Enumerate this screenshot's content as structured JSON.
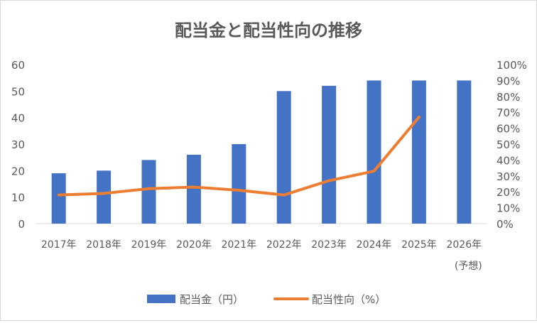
{
  "chart_data": {
    "type": "bar",
    "title": "配当金と配当性向の推移",
    "categories": [
      "2017年",
      "2018年",
      "2019年",
      "2020年",
      "2021年",
      "2022年",
      "2023年",
      "2024年",
      "2025年",
      "2026年"
    ],
    "category_sublabels": [
      "",
      "",
      "",
      "",
      "",
      "",
      "",
      "",
      "",
      "(予想)"
    ],
    "series": [
      {
        "name": "配当金（円）",
        "type": "bar",
        "axis": "left",
        "color": "#4472c4",
        "values": [
          19,
          20,
          24,
          26,
          30,
          50,
          52,
          54,
          54,
          54
        ]
      },
      {
        "name": "配当性向（%）",
        "type": "line",
        "axis": "right",
        "color": "#ed7d31",
        "values": [
          18,
          19,
          22,
          23,
          21,
          18,
          27,
          33,
          67,
          null
        ]
      }
    ],
    "y_left": {
      "min": 0,
      "max": 60,
      "ticks": [
        0,
        10,
        20,
        30,
        40,
        50,
        60
      ]
    },
    "y_right": {
      "min": 0,
      "max": 100,
      "ticks": [
        "0%",
        "10%",
        "20%",
        "30%",
        "40%",
        "50%",
        "60%",
        "70%",
        "80%",
        "90%",
        "100%"
      ]
    },
    "grid": false,
    "legend_position": "bottom"
  }
}
